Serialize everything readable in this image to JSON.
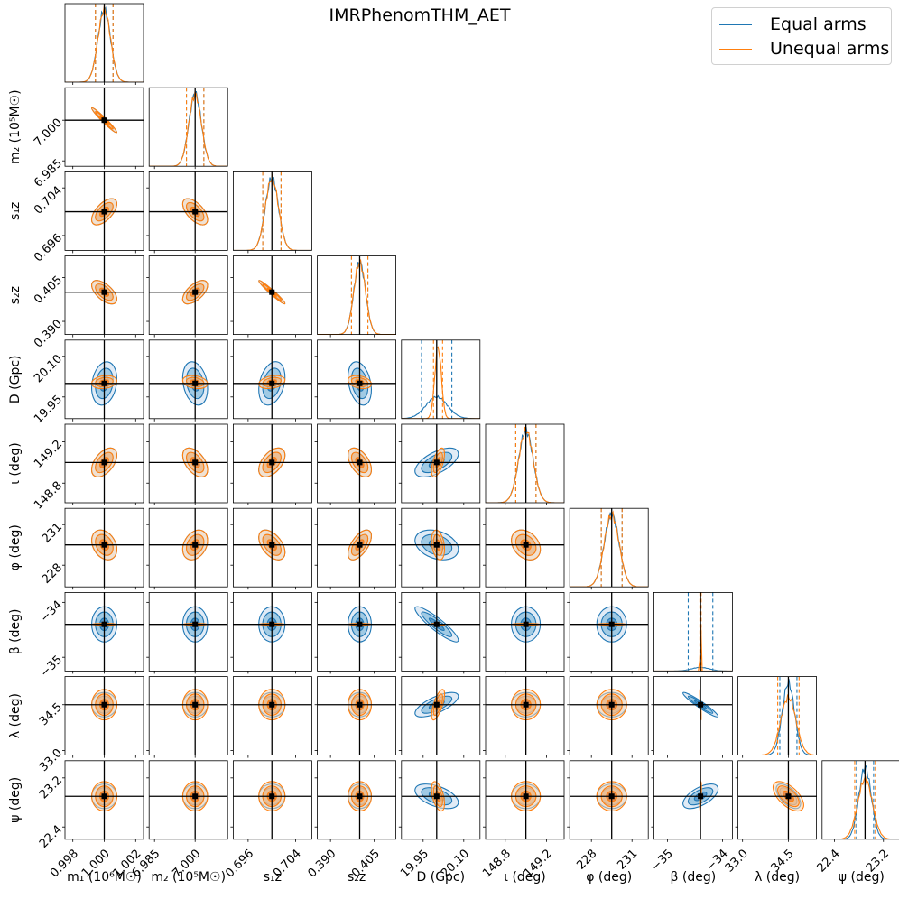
{
  "chart_data": {
    "type": "corner",
    "title": "IMRPhenomTHM_AET",
    "legend": {
      "placement": "top-right",
      "entries": [
        {
          "name": "Equal arms",
          "color": "#1f77b4"
        },
        {
          "name": "Unequal arms",
          "color": "#ff7f0e"
        }
      ]
    },
    "parameters": [
      {
        "label": "m₁ (10⁶M☉)",
        "truth": 1.0,
        "range": [
          0.9975,
          1.0025
        ],
        "ticks": [
          0.998,
          1.0,
          1.002
        ],
        "tick_labels": [
          "0.998",
          "1.000",
          "1.002"
        ],
        "eq_sd": 0.0004,
        "uneq_sd": 0.0004,
        "eq_mean": 1.0,
        "uneq_mean": 1.0
      },
      {
        "label": "m₂ (10⁵M☉)",
        "truth": 7.0,
        "range": [
          6.983,
          7.012
        ],
        "ticks": [
          6.985,
          7.0
        ],
        "tick_labels": [
          "6.985",
          "7.000"
        ],
        "eq_sd": 0.0023,
        "uneq_sd": 0.0023,
        "eq_mean": 7.0,
        "uneq_mean": 7.0
      },
      {
        "label": "s₁z",
        "truth": 0.7,
        "range": [
          0.6935,
          0.7067
        ],
        "ticks": [
          0.696,
          0.704
        ],
        "tick_labels": [
          "0.696",
          "0.704"
        ],
        "eq_sd": 0.0011,
        "uneq_sd": 0.0011,
        "eq_mean": 0.7,
        "uneq_mean": 0.7
      },
      {
        "label": "s₂z",
        "truth": 0.4,
        "range": [
          0.3855,
          0.4124
        ],
        "ticks": [
          0.39,
          0.405
        ],
        "tick_labels": [
          "0.390",
          "0.405"
        ],
        "eq_sd": 0.002,
        "uneq_sd": 0.002,
        "eq_mean": 0.4,
        "uneq_mean": 0.4
      },
      {
        "label": "D (Gpc)",
        "truth": 20.0,
        "range": [
          19.87,
          20.16
        ],
        "ticks": [
          19.95,
          20.1
        ],
        "tick_labels": [
          "19.95",
          "20.10"
        ],
        "eq_sd": 0.04,
        "uneq_sd": 0.012,
        "eq_mean": 20.0,
        "uneq_mean": 20.005
      },
      {
        "label": "ι (deg)",
        "truth": 149.0,
        "range": [
          148.61,
          149.37
        ],
        "ticks": [
          148.8,
          149.2
        ],
        "tick_labels": [
          "148.8",
          "149.2"
        ],
        "eq_sd": 0.07,
        "uneq_sd": 0.07,
        "eq_mean": 149.0,
        "uneq_mean": 149.0
      },
      {
        "label": "φ (deg)",
        "truth": 229.5,
        "range": [
          226.4,
          232.2
        ],
        "ticks": [
          228,
          231
        ],
        "tick_labels": [
          "228",
          "231"
        ],
        "eq_sd": 0.55,
        "uneq_sd": 0.55,
        "eq_mean": 229.5,
        "uneq_mean": 229.5
      },
      {
        "label": "β (deg)",
        "truth": -34.4,
        "range": [
          -35.25,
          -33.82
        ],
        "ticks": [
          -35,
          -34
        ],
        "tick_labels": [
          "−35",
          "−34"
        ],
        "eq_sd": 0.16,
        "uneq_sd": 0.008,
        "eq_mean": -34.4,
        "uneq_mean": -34.4
      },
      {
        "label": "λ (deg)",
        "truth": 34.5,
        "range": [
          32.85,
          35.42
        ],
        "ticks": [
          33.0,
          34.5
        ],
        "tick_labels": [
          "33.0",
          "34.5"
        ],
        "eq_sd": 0.2,
        "uneq_sd": 0.25,
        "eq_mean": 34.5,
        "uneq_mean": 34.5
      },
      {
        "label": "ψ (deg)",
        "truth": 22.9,
        "range": [
          22.2,
          23.48
        ],
        "ticks": [
          22.4,
          23.2
        ],
        "tick_labels": [
          "22.4",
          "23.2"
        ],
        "eq_sd": 0.1,
        "uneq_sd": 0.12,
        "eq_mean": 22.9,
        "uneq_mean": 22.9
      }
    ],
    "correlations": [
      [
        0,
        0,
        0,
        0,
        0,
        0,
        0,
        0,
        0,
        0
      ],
      [
        -0.97,
        0,
        0,
        0,
        0,
        0,
        0,
        0,
        0,
        0
      ],
      [
        0.6,
        -0.6,
        0,
        0,
        0,
        0,
        0,
        0,
        0,
        0
      ],
      [
        -0.6,
        0.6,
        -0.97,
        0,
        0,
        0,
        0,
        0,
        0,
        0
      ],
      [
        0.2,
        -0.25,
        0.3,
        -0.3,
        0,
        0,
        0,
        0,
        0,
        0
      ],
      [
        0.5,
        -0.5,
        0.5,
        -0.5,
        0.6,
        0,
        0,
        0,
        0,
        0
      ],
      [
        -0.3,
        0.3,
        -0.5,
        0.6,
        -0.3,
        -0.3,
        0,
        0,
        0,
        0
      ],
      [
        0,
        0,
        0,
        0,
        -0.9,
        0,
        0,
        0,
        0,
        0
      ],
      [
        0,
        0,
        0,
        0,
        0.7,
        0,
        0,
        -0.95,
        0,
        0
      ],
      [
        0,
        0,
        0,
        0,
        -0.5,
        0,
        0,
        0.6,
        -0.6,
        0
      ]
    ]
  }
}
